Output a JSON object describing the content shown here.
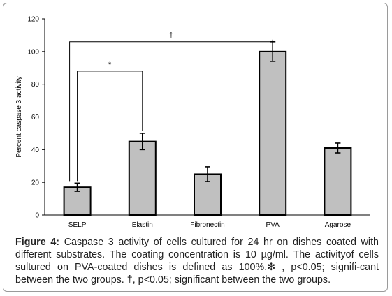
{
  "chart_data": {
    "type": "bar",
    "categories": [
      "SELP",
      "Elastin",
      "Fibronectin",
      "PVA",
      "Agarose"
    ],
    "values": [
      17,
      45,
      25,
      100,
      41
    ],
    "errors": [
      2.5,
      5,
      4.5,
      6,
      3
    ],
    "ylabel": "Percent caspase 3 activity",
    "ylim": [
      0,
      120
    ],
    "yticks": [
      0,
      20,
      40,
      60,
      80,
      100,
      120
    ],
    "bar_color": "#c0c0c0",
    "significance": [
      {
        "from": "SELP",
        "to": "Elastin",
        "symbol": "*"
      },
      {
        "from": "SELP",
        "to": "PVA",
        "symbol": "†"
      }
    ]
  },
  "caption": {
    "label": "Figure 4:",
    "text": " Caspase 3 activity of cells cultured for 24 hr on dishes coated with different substrates. The coating concentration is 10 µg/ml. The activityof cells sultured on PVA-coated dishes is defined as 100%.✻ , p<0.05; signifi-cant between the two groups. †, p<0.05; significant between the two groups."
  }
}
